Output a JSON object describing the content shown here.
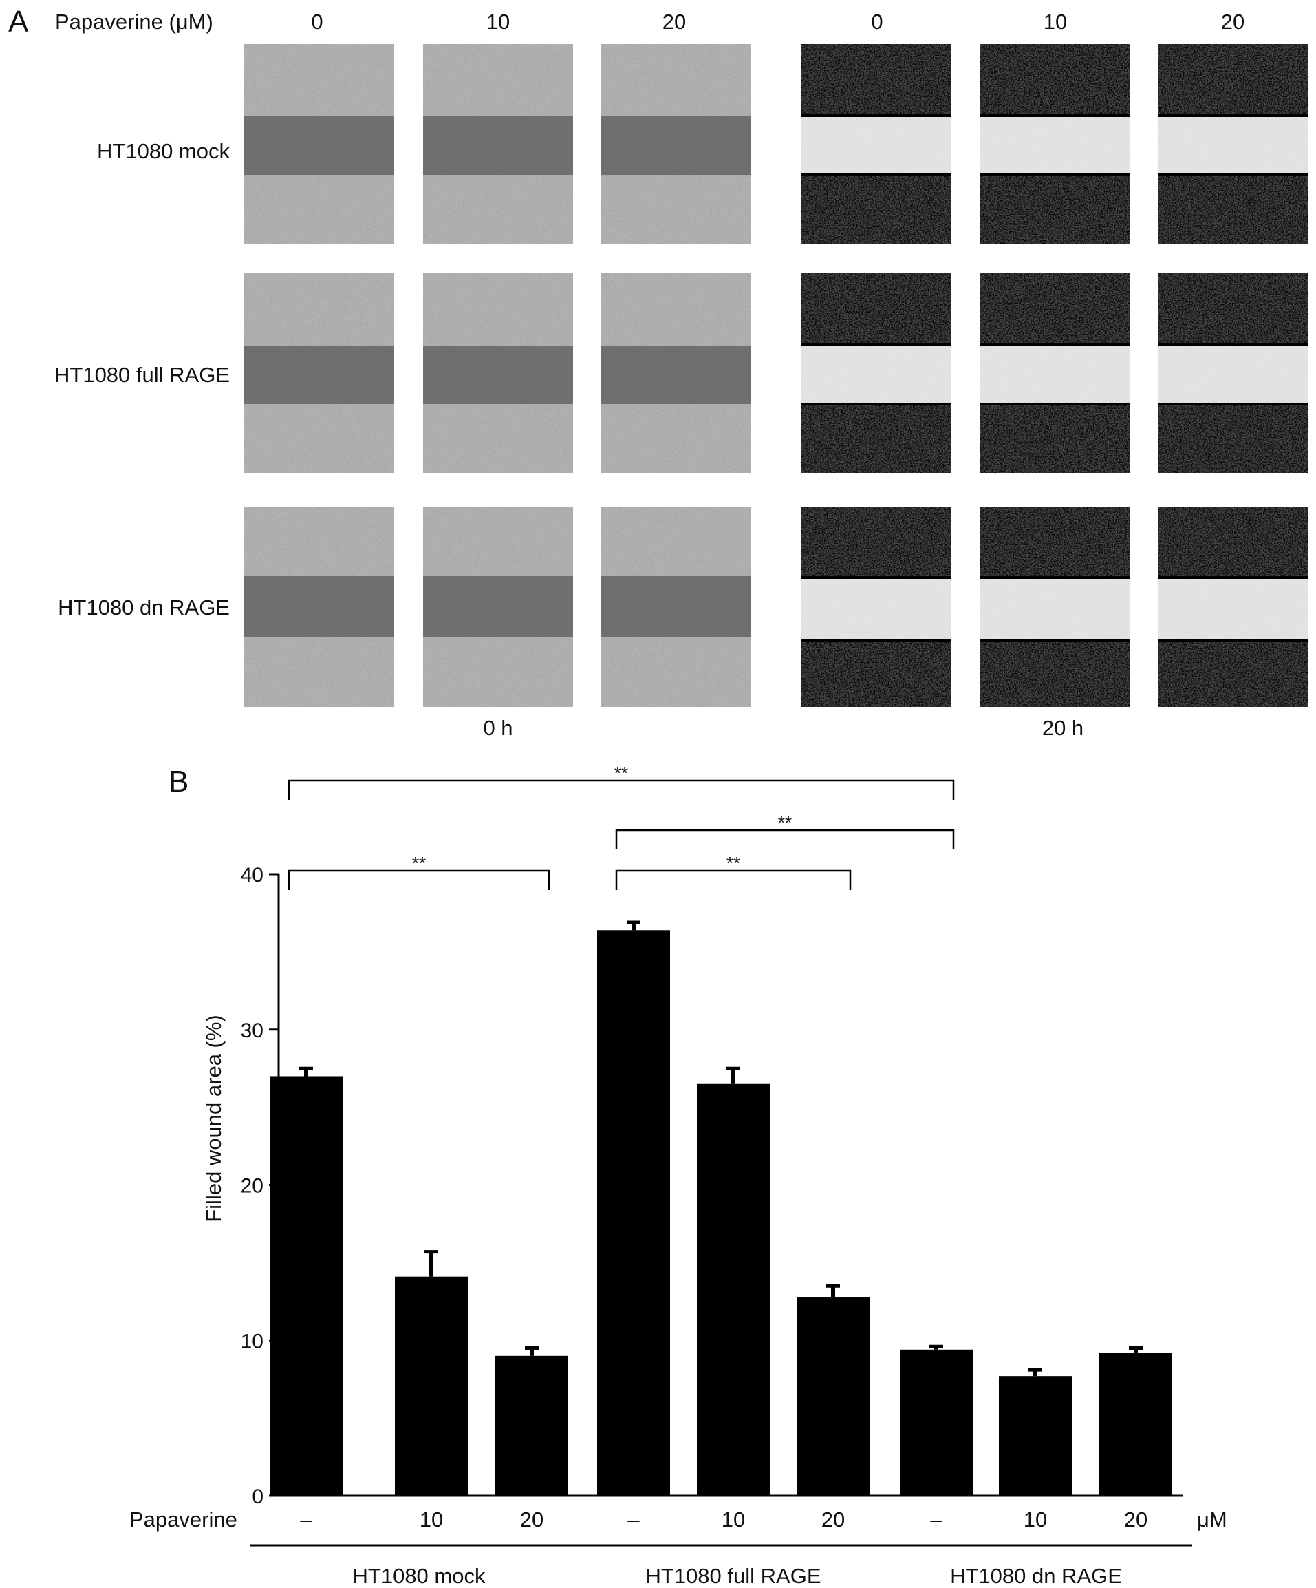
{
  "panel_a": {
    "panel_label": "A",
    "treatment_label": "Papaverine (μM)",
    "columns": [
      "0",
      "10",
      "20",
      "0",
      "10",
      "20"
    ],
    "rows": [
      "HT1080 mock",
      "HT1080 full RAGE",
      "HT1080 dn RAGE"
    ],
    "timepoints": [
      "0 h",
      "20 h"
    ]
  },
  "panel_b": {
    "panel_label": "B",
    "treatment_row_label": "Papaverine",
    "unit_label": "μM",
    "significance_mark": "**"
  },
  "chart_data": {
    "type": "bar",
    "ylabel": "Filled wound area (%)",
    "ylim": [
      0,
      40
    ],
    "yticks": [
      "0",
      "10",
      "20",
      "30",
      "40"
    ],
    "categories": [
      "–",
      "10",
      "20",
      "–",
      "10",
      "20",
      "–",
      "10",
      "20"
    ],
    "groups": [
      "HT1080 mock",
      "HT1080 full RAGE",
      "HT1080 dn RAGE"
    ],
    "values": [
      27.0,
      14.1,
      9.0,
      36.4,
      26.5,
      12.8,
      9.4,
      7.7,
      9.2
    ],
    "errors": [
      0.5,
      1.6,
      0.5,
      0.5,
      1.0,
      0.7,
      0.2,
      0.4,
      0.3
    ],
    "bar_color": "#000000",
    "grid": false,
    "significance": [
      {
        "from": 0,
        "to": 2,
        "label": "**"
      },
      {
        "from": 3,
        "to": 5,
        "label": "**"
      },
      {
        "from": 3,
        "to": 6,
        "label": "**"
      },
      {
        "from": 0,
        "to": 6,
        "label": "**"
      }
    ]
  }
}
